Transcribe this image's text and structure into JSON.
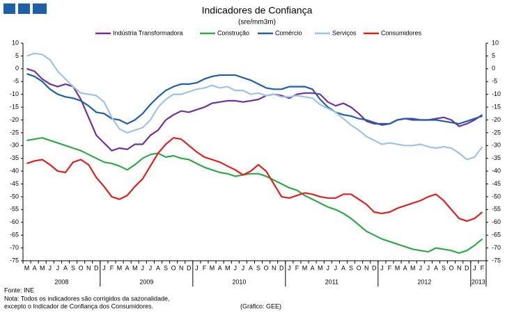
{
  "chart_data": {
    "type": "line",
    "title": "Indicadores de Confiança",
    "subtitle": "(sre/mm3m)",
    "categories": [
      "M",
      "A",
      "M",
      "J",
      "J",
      "A",
      "S",
      "O",
      "N",
      "D",
      "J",
      "F",
      "M",
      "A",
      "M",
      "J",
      "J",
      "A",
      "S",
      "O",
      "N",
      "D",
      "J",
      "F",
      "M",
      "A",
      "M",
      "J",
      "J",
      "A",
      "S",
      "O",
      "N",
      "D",
      "J",
      "F",
      "M",
      "A",
      "M",
      "J",
      "J",
      "A",
      "S",
      "O",
      "N",
      "D",
      "J",
      "F",
      "M",
      "A",
      "M",
      "J",
      "J",
      "A",
      "S",
      "O",
      "N",
      "D",
      "J",
      "F"
    ],
    "years": [
      "2008",
      "2009",
      "2010",
      "2011",
      "2012",
      "2013"
    ],
    "ylim": [
      -75,
      10
    ],
    "yticks": [
      10,
      5,
      0,
      -5,
      -10,
      -15,
      -20,
      -25,
      -30,
      -35,
      -40,
      -45,
      -50,
      -55,
      -60,
      -65,
      -70,
      -75
    ],
    "y2lim": [
      -75,
      10
    ],
    "y2ticks": [
      10,
      5,
      0,
      -5,
      -10,
      -15,
      -20,
      -25,
      -30,
      -35,
      -40,
      -45,
      -50,
      -55,
      -60,
      -65,
      -70,
      -75
    ],
    "grid": false,
    "series": [
      {
        "name": "Indústria Transformadora",
        "color": "#7030a0",
        "values": [
          0,
          -1,
          -4,
          -6,
          -7,
          -6,
          -7,
          -12,
          -19,
          -26,
          -29,
          -32,
          -31,
          -31.5,
          -29.5,
          -29.5,
          -26,
          -24,
          -20,
          -18,
          -16.5,
          -17,
          -16,
          -15,
          -13.5,
          -13,
          -12.5,
          -12.5,
          -13,
          -12.5,
          -12,
          -10.5,
          -10,
          -10.5,
          -11.5,
          -10,
          -9.5,
          -9.5,
          -10,
          -13,
          -14.5,
          -13.5,
          -15,
          -17.5,
          -20.5,
          -21.5,
          -21.5,
          -21.5,
          -20,
          -19.5,
          -20,
          -20,
          -20,
          -19.5,
          -19,
          -20,
          -22.5,
          -21.5,
          -20,
          -18
        ]
      },
      {
        "name": "Construção",
        "color": "#2ea84a",
        "values": [
          -28,
          -27.5,
          -27,
          -28,
          -29,
          -30,
          -31,
          -32,
          -33.5,
          -35,
          -36.5,
          -37,
          -38,
          -39.5,
          -37.5,
          -35,
          -33.5,
          -33,
          -34.5,
          -34,
          -35,
          -35.5,
          -37,
          -38.5,
          -39.5,
          -40.5,
          -41,
          -42,
          -41.5,
          -41,
          -41,
          -42,
          -43.5,
          -45,
          -46.5,
          -47.5,
          -49.5,
          -51,
          -52.5,
          -54,
          -55,
          -56.5,
          -58.5,
          -61,
          -63.5,
          -65,
          -66.5,
          -67.5,
          -68.5,
          -69.5,
          -70.5,
          -71,
          -71.5,
          -70,
          -70.5,
          -71,
          -72,
          -71,
          -69,
          -66.5
        ]
      },
      {
        "name": "Comércio",
        "color": "#1f5fa8",
        "values": [
          -2,
          -3,
          -5,
          -8,
          -10,
          -11,
          -11.5,
          -12.5,
          -14.5,
          -17,
          -17.5,
          -19.5,
          -20,
          -21.5,
          -20,
          -17.5,
          -14,
          -11,
          -8.5,
          -7,
          -6,
          -6,
          -5.5,
          -4,
          -3,
          -2.5,
          -2.5,
          -2.5,
          -3.5,
          -4.5,
          -6,
          -7.5,
          -8,
          -8,
          -7,
          -7,
          -7,
          -8,
          -12,
          -15,
          -17,
          -18,
          -18.5,
          -19.5,
          -20,
          -21,
          -22,
          -21.5,
          -20,
          -19.5,
          -19.5,
          -20,
          -20,
          -20,
          -20.5,
          -21,
          -21.5,
          -20.5,
          -19.5,
          -18.5
        ]
      },
      {
        "name": "Serviços",
        "color": "#9dc3e6",
        "values": [
          5,
          6,
          5.5,
          3.5,
          -1,
          -4,
          -7,
          -9.5,
          -10,
          -10.5,
          -13,
          -19,
          -23.5,
          -25,
          -24,
          -23,
          -20,
          -15,
          -12,
          -10,
          -10,
          -9,
          -8,
          -7.5,
          -6.5,
          -7.5,
          -7,
          -8.5,
          -8.5,
          -10,
          -9.5,
          -10.5,
          -10,
          -11,
          -11,
          -10.5,
          -11,
          -11.5,
          -14,
          -15.5,
          -17,
          -19.5,
          -22,
          -24,
          -26.5,
          -28,
          -29.5,
          -29,
          -29.5,
          -30,
          -30,
          -29.5,
          -30.5,
          -31,
          -30.5,
          -31,
          -33,
          -35.5,
          -34.5,
          -30.5
        ]
      },
      {
        "name": "Consumidores",
        "color": "#e02020",
        "values": [
          -37,
          -36,
          -35.5,
          -37.5,
          -40,
          -40.5,
          -36.5,
          -35.5,
          -37.5,
          -42.5,
          -46,
          -50,
          -51,
          -49.5,
          -46,
          -43,
          -38,
          -33,
          -29.5,
          -27,
          -27.5,
          -30,
          -32.5,
          -34.5,
          -35.5,
          -36.5,
          -38,
          -39.5,
          -41.5,
          -40,
          -37.5,
          -40,
          -45,
          -50,
          -50.5,
          -49.5,
          -48.5,
          -49,
          -50,
          -50.5,
          -50.5,
          -49,
          -49,
          -51,
          -53,
          -56,
          -56.5,
          -56,
          -54.5,
          -53.5,
          -52.5,
          -51.5,
          -50,
          -49,
          -51.5,
          -55,
          -58.5,
          -59.5,
          -58.5,
          -56
        ]
      }
    ],
    "source": "Fonte: INE",
    "notes": [
      "Nota: Todos os indicadores são corrigidos da sazonalidade,",
      "excepto o Indicador de Confiança dos Consumidores."
    ],
    "credit": "(Gráfico: GEE)"
  }
}
